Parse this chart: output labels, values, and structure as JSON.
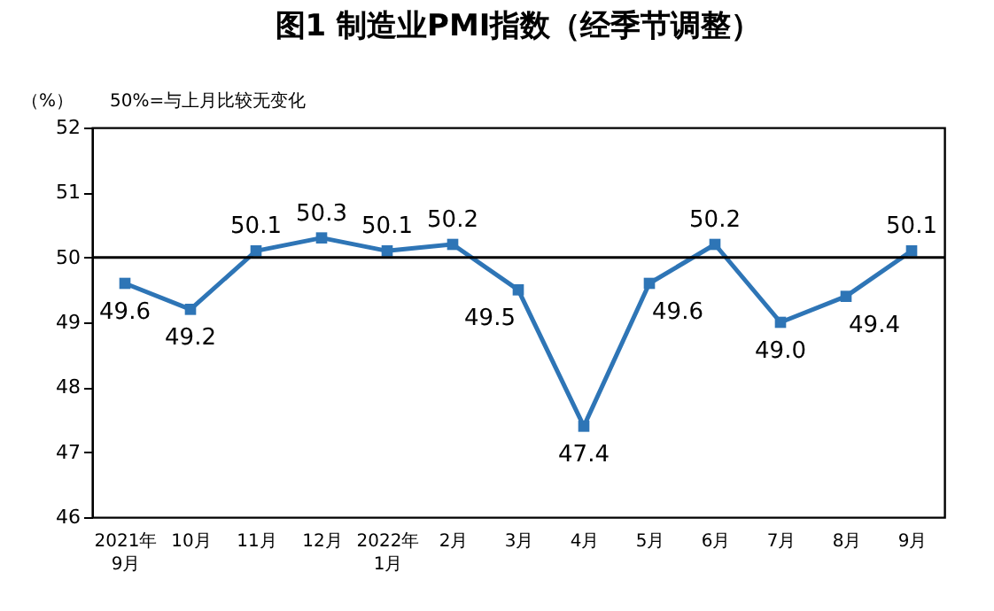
{
  "chart_data": {
    "type": "line",
    "title": "图1  制造业PMI指数（经季节调整）",
    "ylabel": "（%）",
    "annotations": [
      "50%=与上月比较无变化"
    ],
    "categories": [
      "2021年\n9月",
      "10月",
      "11月",
      "12月",
      "2022年\n1月",
      "2月",
      "3月",
      "4月",
      "5月",
      "6月",
      "7月",
      "8月",
      "9月"
    ],
    "series": [
      {
        "color": "#2e75b6",
        "values": [
          49.6,
          49.2,
          50.1,
          50.3,
          50.1,
          50.2,
          49.5,
          47.4,
          49.6,
          50.2,
          49.0,
          49.4,
          50.1
        ],
        "value_labels": [
          "49.6",
          "49.2",
          "50.1",
          "50.3",
          "50.1",
          "50.2",
          "49.5",
          "47.4",
          "49.6",
          "50.2",
          "49.0",
          "49.4",
          "50.1"
        ]
      }
    ],
    "ylim": [
      46,
      52
    ],
    "yticks": [
      46,
      47,
      48,
      49,
      50,
      51,
      52
    ],
    "ref_lines": [
      {
        "axis": "y",
        "value": 50,
        "color": "#000000"
      }
    ],
    "marker": "square",
    "grid": false
  }
}
